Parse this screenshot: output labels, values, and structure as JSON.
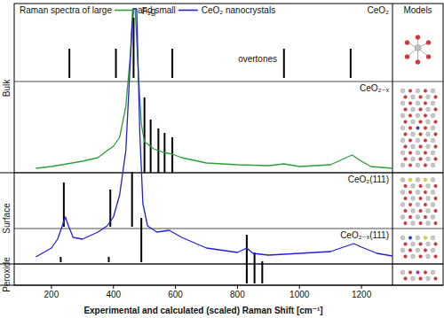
{
  "chart_data": {
    "type": "line",
    "title": "CeO₂ nanocrystals",
    "models_label": "Models",
    "x_label": "Experimental and calculated (scaled) Raman Shift [cm⁻¹]",
    "xlim": [
      80,
      1300
    ],
    "xticks": [
      200,
      400,
      600,
      800,
      1000,
      1200
    ],
    "ylim": [
      0,
      318
    ],
    "tick_labels": "x",
    "series": [
      {
        "name": "Raman spectra of large",
        "color": "#2e9e38",
        "type": "line",
        "x": [
          150,
          200,
          250,
          300,
          350,
          380,
          400,
          420,
          440,
          455,
          462,
          470,
          480,
          490,
          500,
          530,
          560,
          590,
          620,
          700,
          800,
          900,
          950,
          1000,
          1100,
          1150,
          1170,
          1190,
          1230,
          1300
        ],
        "values": [
          132,
          134,
          137,
          140,
          144,
          152,
          157,
          167,
          202,
          262,
          312,
          312,
          242,
          182,
          162,
          154,
          150,
          148,
          144,
          138,
          136,
          135,
          137,
          134,
          136,
          144,
          147,
          142,
          134,
          132
        ]
      },
      {
        "name": "and small",
        "color": "#2020e0",
        "type": "line",
        "x": [
          150,
          200,
          220,
          235,
          245,
          255,
          270,
          300,
          350,
          380,
          400,
          420,
          440,
          450,
          460,
          465,
          475,
          485,
          495,
          510,
          540,
          580,
          620,
          700,
          800,
          830,
          850,
          900,
          1000,
          1100,
          1150,
          1175,
          1200,
          1250,
          1300
        ],
        "values": [
          32,
          42,
          52,
          67,
          77,
          67,
          54,
          52,
          60,
          67,
          77,
          102,
          152,
          222,
          292,
          312,
          312,
          172,
          92,
          67,
          60,
          62,
          54,
          42,
          37,
          42,
          36,
          34,
          36,
          38,
          44,
          47,
          43,
          36,
          33
        ]
      }
    ],
    "groups": [
      {
        "label": "Bulk",
        "ylim": [
          127,
          318
        ]
      },
      {
        "label": "Surface",
        "ylim": [
          24,
          127
        ]
      },
      {
        "label": "Peroxide",
        "ylim": [
          0,
          24
        ]
      }
    ],
    "panels": [
      {
        "label": "CeO₂",
        "ylim": [
          230,
          318
        ]
      },
      {
        "label": "CeO₂₋ₓ",
        "ylim": [
          127,
          230
        ]
      },
      {
        "label": "CeO₂(111)",
        "ylim": [
          64,
          127
        ]
      },
      {
        "label": "CeO₂₋ₓ(111)",
        "ylim": [
          24,
          64
        ]
      }
    ],
    "sticks": [
      {
        "type": "bar",
        "color": "#000000",
        "baseline": 234,
        "x": [
          258,
          408,
          465,
          590,
          950,
          1165
        ],
        "values": [
          33,
          33,
          68,
          33,
          33,
          33
        ]
      },
      {
        "type": "bar",
        "color": "#000000",
        "baseline": 127,
        "x": [
          500,
          520,
          545,
          565,
          590
        ],
        "values": [
          85,
          60,
          50,
          45,
          40
        ]
      },
      {
        "type": "bar",
        "color": "#000000",
        "baseline": 66,
        "x": [
          240,
          390,
          460
        ],
        "values": [
          50,
          42,
          62
        ]
      },
      {
        "type": "bar",
        "color": "#000000",
        "baseline": 26,
        "x": [
          230,
          385,
          490
        ],
        "values": [
          6,
          6,
          50
        ]
      },
      {
        "type": "bar",
        "color": "#000000",
        "baseline": 2,
        "x": [
          830,
          855,
          880
        ],
        "values": [
          55,
          35,
          25
        ]
      }
    ],
    "annotations": [
      {
        "text": "F₂g",
        "x": 492,
        "y": 306
      },
      {
        "text": "overtones",
        "x": 865,
        "y": 252
      }
    ]
  }
}
